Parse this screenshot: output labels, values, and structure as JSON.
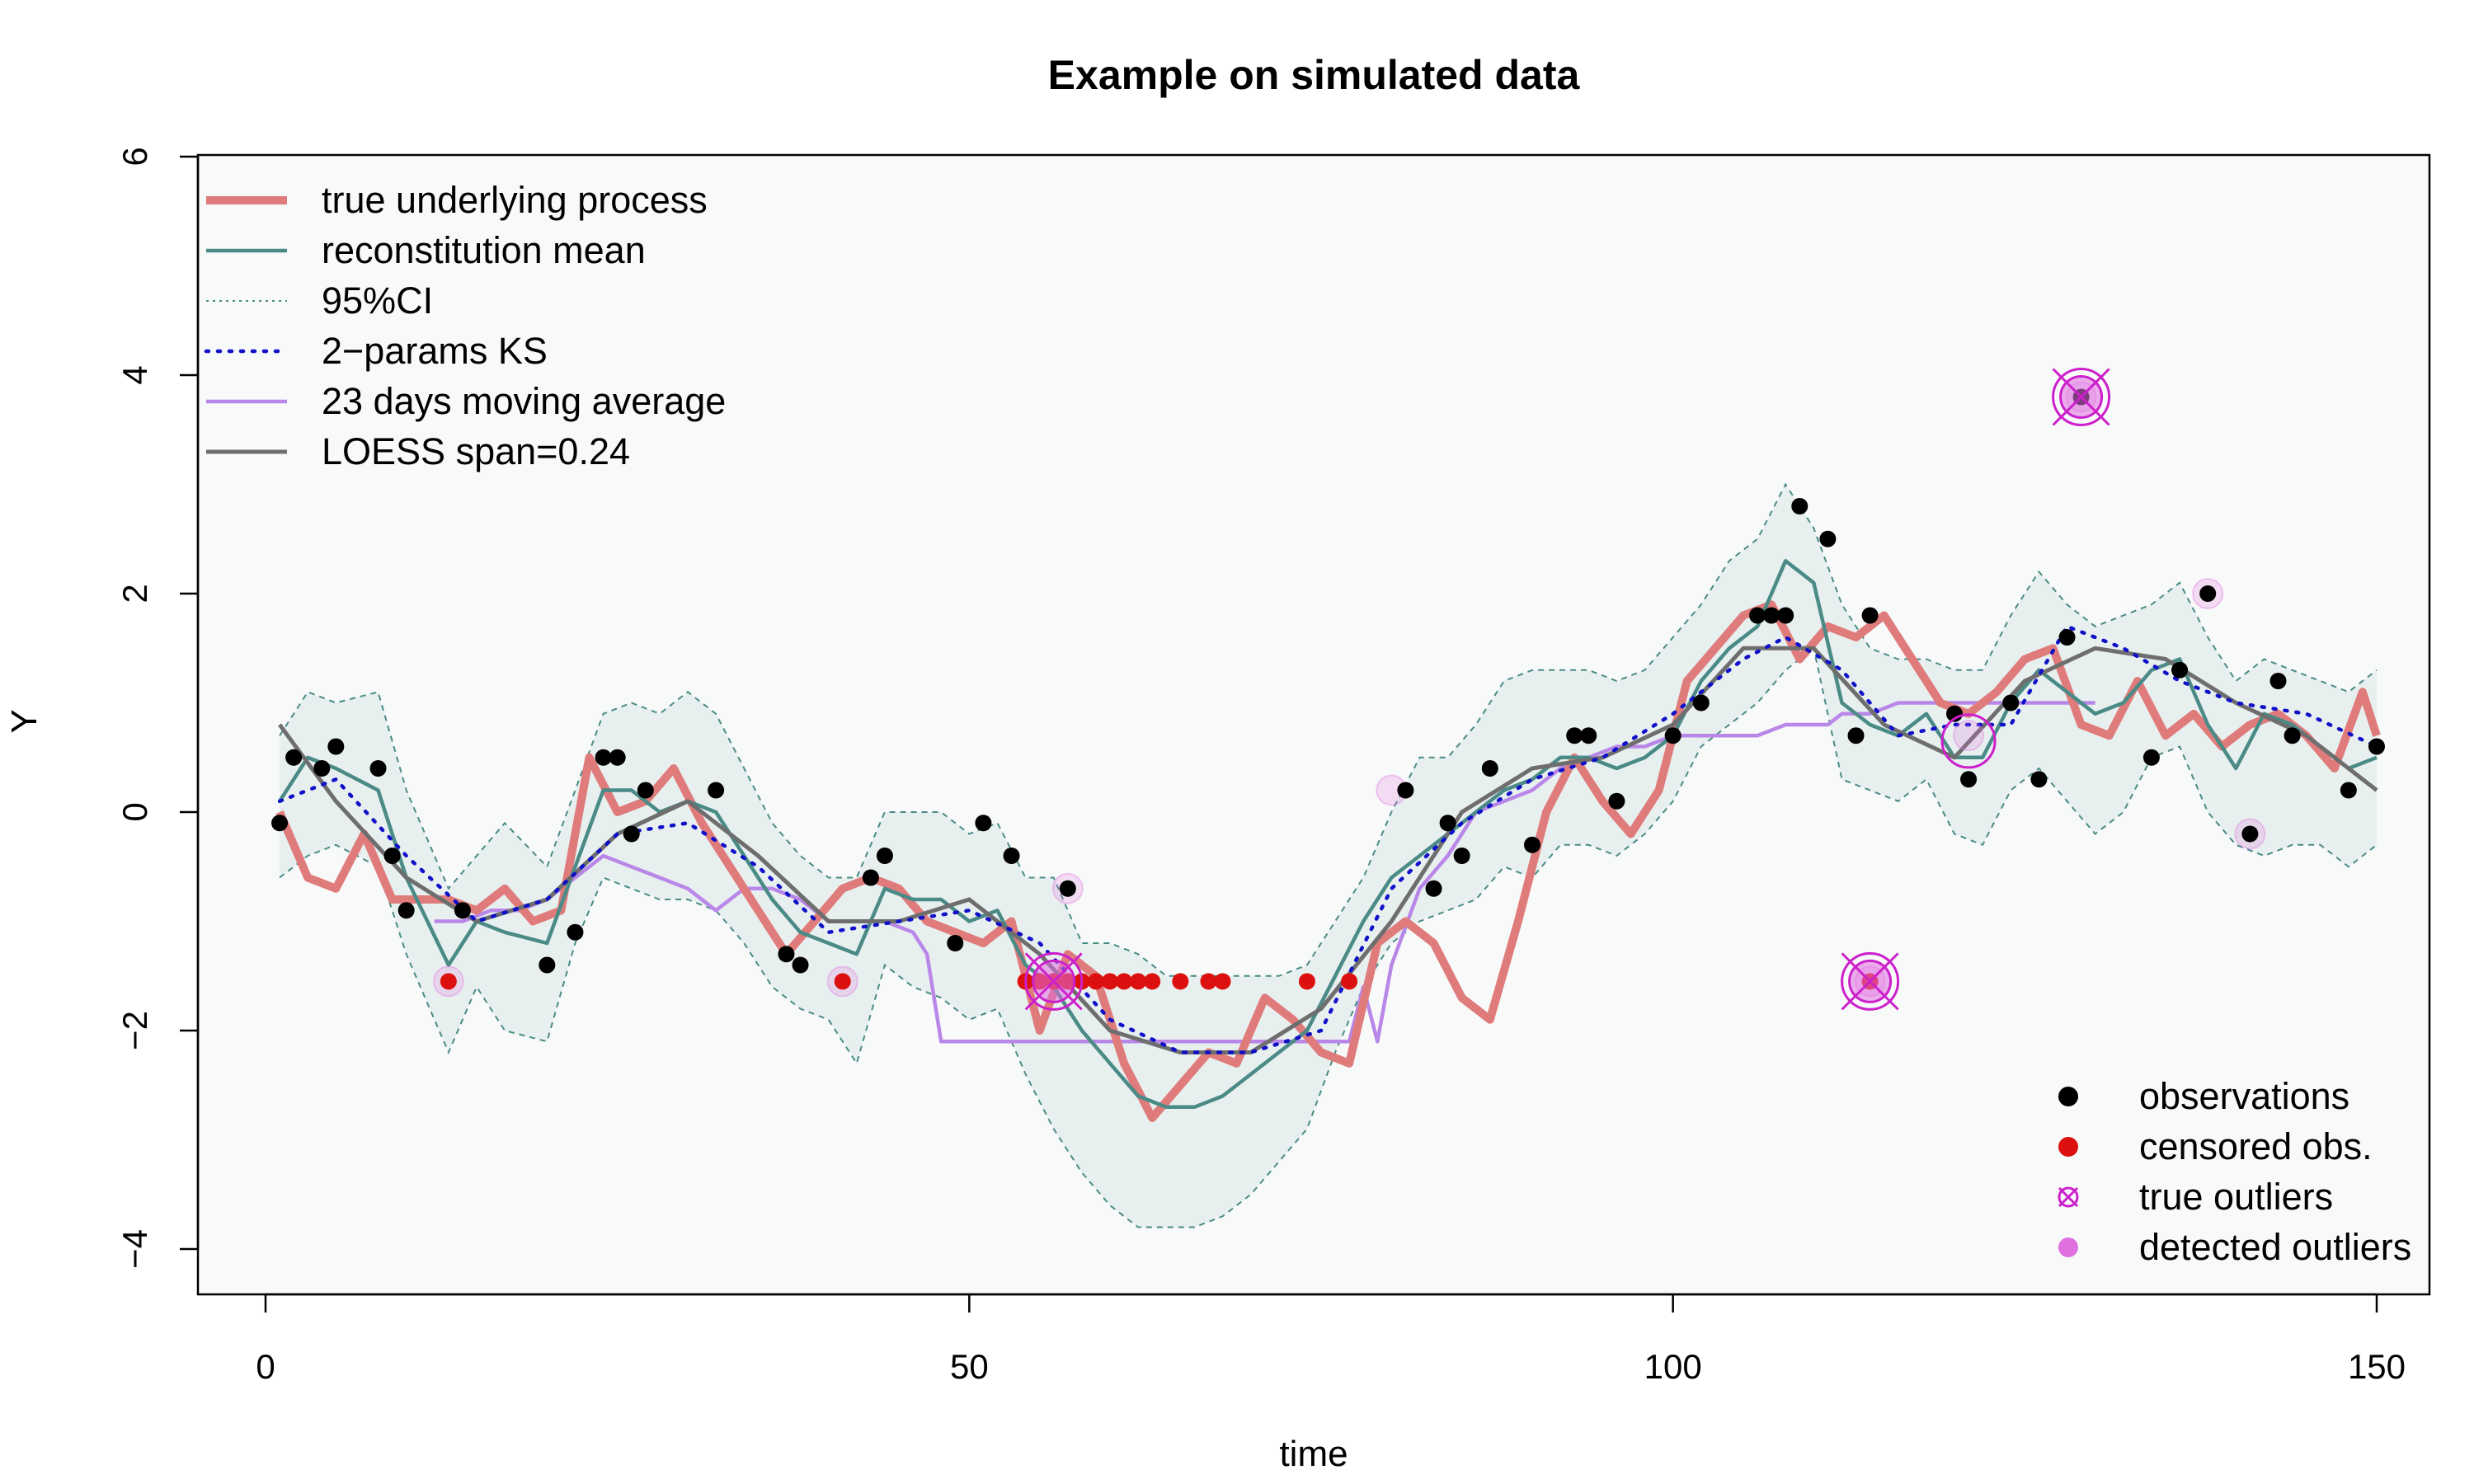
{
  "chart_data": {
    "type": "line",
    "title": "Example on simulated data",
    "xlabel": "time",
    "ylabel": "Y",
    "xlim": [
      0,
      150
    ],
    "ylim": [
      -4,
      6
    ],
    "x_ticks": [
      "0",
      "50",
      "100",
      "150"
    ],
    "x_tick_values": [
      0,
      50,
      100,
      150
    ],
    "y_ticks": [
      "−4",
      "−2",
      "0",
      "2",
      "4",
      "6"
    ],
    "y_tick_values": [
      -4,
      -2,
      0,
      2,
      4,
      6
    ],
    "colors": {
      "plot_bg": "#f8f9f9",
      "true": "#e07b7b",
      "recon": "#4a8b87",
      "ci_fill": "#e8f0ef",
      "ci_line": "#4a8b87",
      "ks": "#1010c8",
      "ma": "#b987e8",
      "loess": "#6e6e6e",
      "obs": "#000000",
      "censored": "#dd1010",
      "outlier": "#cc20cc",
      "detected": "#e070e0"
    },
    "legend_top": [
      {
        "label": "true underlying process",
        "style": "true"
      },
      {
        "label": "reconstitution mean",
        "style": "recon"
      },
      {
        "label": "95%CI",
        "style": "ci"
      },
      {
        "label": "2−params KS",
        "style": "ks"
      },
      {
        "label": "23 days moving average",
        "style": "ma"
      },
      {
        "label": "LOESS span=0.24",
        "style": "loess"
      }
    ],
    "legend_bottom": [
      {
        "label": "observations",
        "style": "obs"
      },
      {
        "label": "censored obs.",
        "style": "censored"
      },
      {
        "label": "true outliers",
        "style": "outlier"
      },
      {
        "label": "detected outliers",
        "style": "detected"
      }
    ],
    "series": [
      {
        "name": "true underlying process",
        "x": [
          1,
          3,
          5,
          7,
          9,
          11,
          13,
          15,
          17,
          19,
          21,
          23,
          25,
          27,
          29,
          31,
          33,
          35,
          37,
          39,
          41,
          43,
          45,
          47,
          49,
          51,
          53,
          55,
          57,
          59,
          61,
          63,
          65,
          67,
          69,
          71,
          73,
          75,
          77,
          79,
          81,
          83,
          85,
          87,
          89,
          91,
          93,
          95,
          97,
          99,
          101,
          103,
          105,
          107,
          109,
          111,
          113,
          115,
          117,
          119,
          121,
          123,
          125,
          127,
          129,
          131,
          133,
          135,
          137,
          139,
          141,
          143,
          145,
          147,
          149,
          150
        ],
        "y": [
          0.0,
          -0.6,
          -0.7,
          -0.2,
          -0.8,
          -0.8,
          -0.8,
          -0.9,
          -0.7,
          -1.0,
          -0.9,
          0.5,
          0.0,
          0.1,
          0.4,
          -0.1,
          -0.5,
          -0.9,
          -1.3,
          -1.0,
          -0.7,
          -0.6,
          -0.7,
          -1.0,
          -1.1,
          -1.2,
          -1.0,
          -2.0,
          -1.3,
          -1.5,
          -2.3,
          -2.8,
          -2.5,
          -2.2,
          -2.3,
          -1.7,
          -1.9,
          -2.2,
          -2.3,
          -1.2,
          -1.0,
          -1.2,
          -1.7,
          -1.9,
          -1.0,
          0.0,
          0.5,
          0.1,
          -0.2,
          0.2,
          1.2,
          1.5,
          1.8,
          1.9,
          1.4,
          1.7,
          1.6,
          1.8,
          1.4,
          1.0,
          0.9,
          1.1,
          1.4,
          1.5,
          0.8,
          0.7,
          1.2,
          0.7,
          0.9,
          0.6,
          0.8,
          0.9,
          0.7,
          0.4,
          1.1,
          0.7
        ]
      },
      {
        "name": "reconstitution mean",
        "x": [
          1,
          3,
          5,
          8,
          10,
          13,
          15,
          17,
          20,
          22,
          24,
          26,
          28,
          30,
          32,
          34,
          36,
          38,
          40,
          42,
          44,
          46,
          48,
          50,
          52,
          54,
          56,
          58,
          60,
          62,
          64,
          66,
          68,
          70,
          72,
          74,
          76,
          78,
          80,
          82,
          84,
          86,
          88,
          90,
          92,
          94,
          96,
          98,
          100,
          102,
          104,
          106,
          108,
          110,
          112,
          114,
          116,
          118,
          120,
          122,
          124,
          126,
          128,
          130,
          132,
          134,
          136,
          138,
          140,
          142,
          144,
          146,
          148,
          150
        ],
        "y": [
          0.1,
          0.5,
          0.4,
          0.2,
          -0.6,
          -1.4,
          -1.0,
          -1.1,
          -1.2,
          -0.5,
          0.2,
          0.2,
          0.0,
          0.1,
          0.0,
          -0.4,
          -0.8,
          -1.1,
          -1.2,
          -1.3,
          -0.7,
          -0.8,
          -0.8,
          -1.0,
          -0.9,
          -1.4,
          -1.6,
          -2.0,
          -2.3,
          -2.6,
          -2.7,
          -2.7,
          -2.6,
          -2.4,
          -2.2,
          -2.0,
          -1.5,
          -1.0,
          -0.6,
          -0.4,
          -0.2,
          0.0,
          0.2,
          0.3,
          0.5,
          0.5,
          0.4,
          0.5,
          0.7,
          1.2,
          1.5,
          1.7,
          2.3,
          2.1,
          1.0,
          0.8,
          0.7,
          0.9,
          0.5,
          0.5,
          1.0,
          1.3,
          1.1,
          0.9,
          1.0,
          1.3,
          1.4,
          0.8,
          0.4,
          0.9,
          0.8,
          0.6,
          0.4,
          0.5
        ]
      },
      {
        "name": "2−params KS",
        "x": [
          1,
          5,
          10,
          15,
          20,
          25,
          30,
          35,
          40,
          45,
          50,
          55,
          60,
          65,
          70,
          75,
          80,
          85,
          90,
          95,
          100,
          105,
          108,
          112,
          116,
          120,
          124,
          128,
          132,
          136,
          140,
          145,
          150
        ],
        "y": [
          0.1,
          0.3,
          -0.4,
          -1.0,
          -0.8,
          -0.2,
          -0.1,
          -0.5,
          -1.1,
          -1.0,
          -0.9,
          -1.2,
          -1.9,
          -2.2,
          -2.2,
          -2.0,
          -0.7,
          -0.1,
          0.3,
          0.5,
          0.9,
          1.4,
          1.6,
          1.3,
          0.7,
          0.8,
          0.8,
          1.7,
          1.5,
          1.2,
          1.0,
          0.9,
          0.6
        ]
      },
      {
        "name": "23 days moving average",
        "x": [
          12,
          14,
          16,
          18,
          20,
          22,
          24,
          26,
          28,
          30,
          32,
          34,
          36,
          38,
          40,
          42,
          44,
          46,
          47,
          48,
          50,
          55,
          60,
          65,
          70,
          74,
          77,
          78,
          79,
          80,
          82,
          84,
          86,
          88,
          90,
          92,
          94,
          96,
          98,
          100,
          102,
          104,
          106,
          108,
          110,
          111,
          112,
          114,
          116,
          120,
          124,
          128,
          130
        ],
        "y": [
          -1.0,
          -1.0,
          -0.9,
          -0.9,
          -0.8,
          -0.6,
          -0.4,
          -0.5,
          -0.6,
          -0.7,
          -0.9,
          -0.7,
          -0.7,
          -0.8,
          -1.0,
          -1.0,
          -1.0,
          -1.1,
          -1.3,
          -2.1,
          -2.1,
          -2.1,
          -2.1,
          -2.1,
          -2.1,
          -2.1,
          -2.1,
          -1.6,
          -2.1,
          -1.4,
          -0.7,
          -0.4,
          0.0,
          0.1,
          0.2,
          0.4,
          0.5,
          0.6,
          0.6,
          0.7,
          0.7,
          0.7,
          0.7,
          0.8,
          0.8,
          0.8,
          0.9,
          0.9,
          1.0,
          1.0,
          1.0,
          1.0,
          1.0
        ]
      },
      {
        "name": "LOESS span=0.24",
        "x": [
          1,
          5,
          10,
          15,
          20,
          25,
          30,
          35,
          40,
          45,
          50,
          55,
          60,
          65,
          70,
          75,
          80,
          85,
          90,
          95,
          100,
          105,
          110,
          115,
          120,
          125,
          130,
          135,
          140,
          145,
          150
        ],
        "y": [
          0.8,
          0.1,
          -0.6,
          -1.0,
          -0.8,
          -0.2,
          0.1,
          -0.4,
          -1.0,
          -1.0,
          -0.8,
          -1.3,
          -2.0,
          -2.2,
          -2.2,
          -1.8,
          -1.0,
          0.0,
          0.4,
          0.5,
          0.8,
          1.5,
          1.5,
          0.8,
          0.5,
          1.2,
          1.5,
          1.4,
          1.0,
          0.7,
          0.2
        ]
      }
    ],
    "ci_band": {
      "name": "95%CI",
      "x": [
        1,
        3,
        5,
        8,
        10,
        13,
        15,
        17,
        20,
        22,
        24,
        26,
        28,
        30,
        32,
        34,
        36,
        38,
        40,
        42,
        44,
        46,
        48,
        50,
        52,
        54,
        56,
        58,
        60,
        62,
        64,
        66,
        68,
        70,
        72,
        74,
        76,
        78,
        80,
        82,
        84,
        86,
        88,
        90,
        92,
        94,
        96,
        98,
        100,
        102,
        104,
        106,
        108,
        110,
        112,
        114,
        116,
        118,
        120,
        122,
        124,
        126,
        128,
        130,
        132,
        134,
        136,
        138,
        140,
        142,
        144,
        146,
        148,
        150
      ],
      "upper": [
        0.7,
        1.1,
        1.0,
        1.1,
        0.2,
        -0.7,
        -0.4,
        -0.1,
        -0.5,
        0.2,
        0.9,
        1.0,
        0.9,
        1.1,
        0.9,
        0.4,
        -0.1,
        -0.4,
        -0.6,
        -0.6,
        0.0,
        0.0,
        0.0,
        -0.2,
        -0.1,
        -0.6,
        -0.6,
        -1.2,
        -1.2,
        -1.3,
        -1.5,
        -1.5,
        -1.5,
        -1.5,
        -1.5,
        -1.4,
        -1.0,
        -0.6,
        0.0,
        0.5,
        0.5,
        0.8,
        1.2,
        1.3,
        1.3,
        1.3,
        1.2,
        1.3,
        1.6,
        1.9,
        2.3,
        2.5,
        3.0,
        2.6,
        1.9,
        1.5,
        1.4,
        1.4,
        1.3,
        1.3,
        1.8,
        2.2,
        1.9,
        1.7,
        1.8,
        1.9,
        2.1,
        1.6,
        1.2,
        1.4,
        1.3,
        1.2,
        1.1,
        1.3
      ],
      "lower": [
        -0.6,
        -0.4,
        -0.3,
        -0.5,
        -1.3,
        -2.2,
        -1.6,
        -2.0,
        -2.1,
        -1.2,
        -0.6,
        -0.7,
        -0.8,
        -0.8,
        -0.9,
        -1.2,
        -1.6,
        -1.8,
        -1.9,
        -2.3,
        -1.4,
        -1.6,
        -1.7,
        -1.9,
        -1.8,
        -2.4,
        -2.9,
        -3.3,
        -3.6,
        -3.8,
        -3.8,
        -3.8,
        -3.7,
        -3.5,
        -3.2,
        -2.9,
        -2.2,
        -1.6,
        -1.2,
        -1.0,
        -0.9,
        -0.8,
        -0.5,
        -0.6,
        -0.3,
        -0.3,
        -0.4,
        -0.2,
        0.1,
        0.6,
        0.8,
        1.0,
        1.3,
        1.5,
        0.3,
        0.2,
        0.1,
        0.3,
        -0.2,
        -0.3,
        0.2,
        0.4,
        0.1,
        -0.2,
        0.0,
        0.5,
        0.6,
        0.0,
        -0.3,
        -0.4,
        -0.3,
        -0.3,
        -0.5,
        -0.3
      ]
    },
    "observations": {
      "x": [
        1,
        2,
        4,
        5,
        8,
        9,
        10,
        14,
        20,
        22,
        24,
        25,
        26,
        27,
        32,
        37,
        38,
        43,
        44,
        49,
        51,
        53,
        57,
        81,
        83,
        84,
        85,
        87,
        90,
        93,
        94,
        96,
        100,
        102,
        106,
        107,
        108,
        109,
        111,
        113,
        114,
        120,
        121,
        124,
        126,
        128,
        129,
        134,
        136,
        138,
        141,
        143,
        144,
        148,
        150
      ],
      "y": [
        -0.1,
        0.5,
        0.4,
        0.6,
        0.4,
        -0.4,
        -0.9,
        -0.9,
        -1.4,
        -1.1,
        0.5,
        0.5,
        -0.2,
        0.2,
        0.2,
        -1.3,
        -1.4,
        -0.6,
        -0.4,
        -1.2,
        -0.1,
        -0.4,
        -0.7,
        0.2,
        -0.7,
        -0.1,
        -0.4,
        0.4,
        -0.3,
        0.7,
        0.7,
        0.1,
        0.7,
        1.0,
        1.8,
        1.8,
        1.8,
        2.8,
        2.5,
        0.7,
        1.8,
        0.9,
        0.3,
        1.0,
        0.3,
        1.6,
        3.8,
        0.5,
        1.3,
        2.0,
        -0.2,
        1.2,
        0.7,
        0.2,
        0.6
      ]
    },
    "censored": {
      "x": [
        13,
        41,
        54,
        55,
        56,
        57,
        58,
        59,
        60,
        61,
        62,
        63,
        65,
        67,
        68,
        74,
        77,
        114
      ],
      "y": [
        -1.55,
        -1.55,
        -1.55,
        -1.55,
        -1.55,
        -1.55,
        -1.55,
        -1.55,
        -1.55,
        -1.55,
        -1.55,
        -1.55,
        -1.55,
        -1.55,
        -1.55,
        -1.55,
        -1.55,
        -1.55
      ]
    },
    "true_outliers": {
      "x": [
        56,
        114,
        129
      ],
      "y": [
        -1.55,
        -1.55,
        3.8
      ]
    },
    "detected_outliers": {
      "x": [
        13,
        41,
        57,
        80,
        114,
        121,
        129,
        138,
        141
      ],
      "y": [
        -1.55,
        -1.55,
        -0.7,
        0.2,
        -1.55,
        0.7,
        3.8,
        2.0,
        -0.2
      ]
    },
    "circled_points": {
      "x": [
        121
      ],
      "y": [
        0.65
      ]
    }
  }
}
